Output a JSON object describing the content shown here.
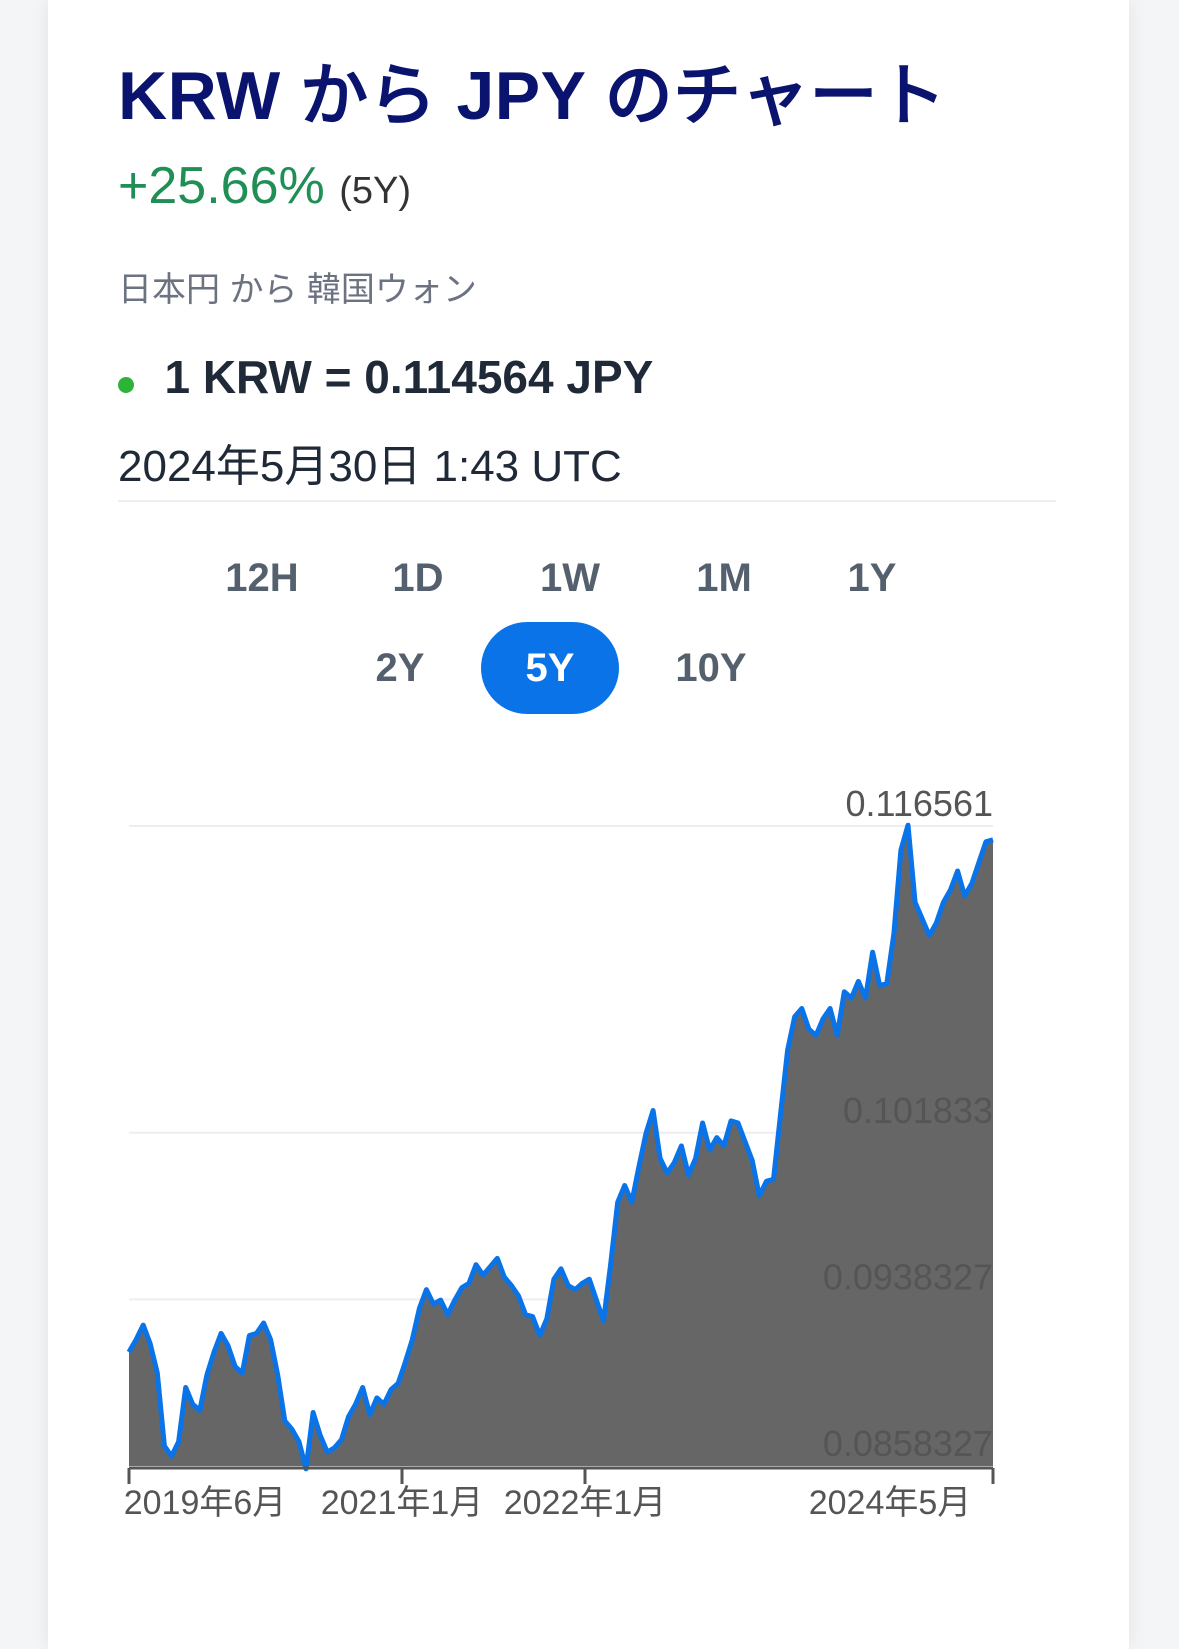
{
  "header": {
    "title": "KRW から JPY のチャート",
    "change": "+25.66%",
    "period": "(5Y)",
    "subtitle": "日本円 から 韓国ウォン",
    "rate": "1 KRW = 0.114564 JPY",
    "timestamp": "2024年5月30日 1:43 UTC"
  },
  "ranges": [
    {
      "label": "12H",
      "active": false
    },
    {
      "label": "1D",
      "active": false
    },
    {
      "label": "1W",
      "active": false
    },
    {
      "label": "1M",
      "active": false
    },
    {
      "label": "1Y",
      "active": false
    },
    {
      "label": "2Y",
      "active": false
    },
    {
      "label": "5Y",
      "active": true
    },
    {
      "label": "10Y",
      "active": false
    }
  ],
  "colors": {
    "title": "#0a146e",
    "positive": "#1f8f55",
    "accent": "#0a73e8",
    "line": "#0a73e8",
    "area": "#666666",
    "live_dot": "#2eb33a"
  },
  "chart_data": {
    "type": "area",
    "title": "",
    "xlabel": "",
    "ylabel": "",
    "ylim": [
      0.0858327,
      0.116561
    ],
    "y_ticks": [
      "0.116561",
      "0.101833",
      "0.0938327",
      "0.0858327"
    ],
    "x_ticks": [
      "2019年6月",
      "2021年1月",
      "2022年1月",
      "2024年5月"
    ],
    "grid": true,
    "series": [
      {
        "values": [
          0.0913,
          0.0919,
          0.0926,
          0.0917,
          0.0903,
          0.0868,
          0.0863,
          0.087,
          0.0896,
          0.0888,
          0.0885,
          0.0902,
          0.0913,
          0.0922,
          0.0916,
          0.0906,
          0.0903,
          0.0921,
          0.0922,
          0.0927,
          0.0919,
          0.0902,
          0.088,
          0.0876,
          0.087,
          0.0857,
          0.0884,
          0.0873,
          0.0865,
          0.0867,
          0.0871,
          0.0882,
          0.0888,
          0.0896,
          0.0883,
          0.0891,
          0.0888,
          0.0895,
          0.0898,
          0.0908,
          0.0919,
          0.0934,
          0.0943,
          0.0936,
          0.0938,
          0.0931,
          0.0938,
          0.0944,
          0.0946,
          0.0955,
          0.095,
          0.0954,
          0.0958,
          0.0949,
          0.0945,
          0.094,
          0.0931,
          0.093,
          0.0921,
          0.0929,
          0.0948,
          0.0953,
          0.0945,
          0.0943,
          0.0946,
          0.0948,
          0.0938,
          0.0928,
          0.0955,
          0.0985,
          0.0993,
          0.0985,
          0.1002,
          0.1018,
          0.1029,
          0.1006,
          0.0999,
          0.1004,
          0.1012,
          0.0998,
          0.1006,
          0.1023,
          0.101,
          0.1016,
          0.1012,
          0.1024,
          0.1023,
          0.1014,
          0.1005,
          0.0988,
          0.0995,
          0.0996,
          0.1027,
          0.1058,
          0.1074,
          0.1078,
          0.1068,
          0.1065,
          0.1073,
          0.1078,
          0.1065,
          0.1086,
          0.1083,
          0.1091,
          0.1083,
          0.1105,
          0.1089,
          0.109,
          0.1114,
          0.1154,
          0.1166,
          0.1129,
          0.1121,
          0.1113,
          0.1119,
          0.1129,
          0.1135,
          0.1144,
          0.1132,
          0.1138,
          0.1148,
          0.1158,
          0.1159
        ]
      }
    ]
  }
}
